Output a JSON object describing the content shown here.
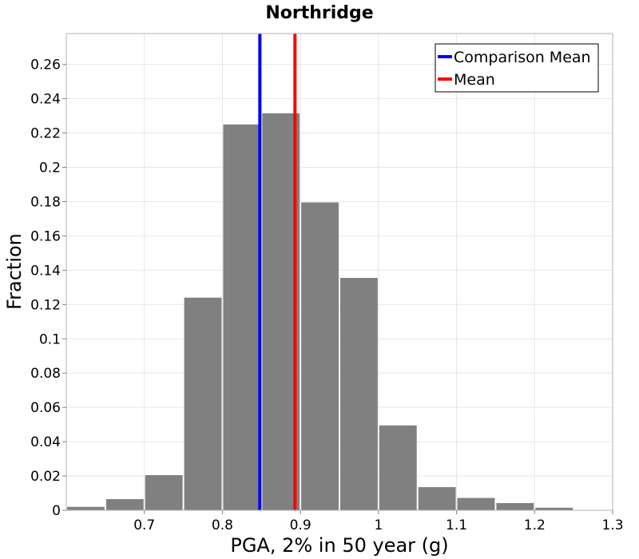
{
  "chart_data": {
    "type": "bar",
    "title": "Northridge",
    "xlabel": "PGA, 2% in 50 year (g)",
    "ylabel": "Fraction",
    "xlim": [
      0.6,
      1.3
    ],
    "ylim": [
      0,
      0.278
    ],
    "xticks": [
      0.7,
      0.8,
      0.9,
      1.0,
      1.1,
      1.2,
      1.3
    ],
    "xtick_labels": [
      "0.7",
      "0.8",
      "0.9",
      "1",
      "1.1",
      "1.2",
      "1.3"
    ],
    "yticks": [
      0,
      0.02,
      0.04,
      0.06,
      0.08,
      0.1,
      0.12,
      0.14,
      0.16,
      0.18,
      0.2,
      0.22,
      0.24,
      0.26
    ],
    "ytick_labels": [
      "0",
      "0.02",
      "0.04",
      "0.06",
      "0.08",
      "0.1",
      "0.12",
      "0.14",
      "0.16",
      "0.18",
      "0.2",
      "0.22",
      "0.24",
      "0.26"
    ],
    "bin_width": 0.05,
    "bins": [
      {
        "x": 0.625,
        "value": 0.002
      },
      {
        "x": 0.675,
        "value": 0.0065
      },
      {
        "x": 0.725,
        "value": 0.0205
      },
      {
        "x": 0.775,
        "value": 0.124
      },
      {
        "x": 0.825,
        "value": 0.225
      },
      {
        "x": 0.875,
        "value": 0.2315
      },
      {
        "x": 0.925,
        "value": 0.1795
      },
      {
        "x": 0.975,
        "value": 0.1355
      },
      {
        "x": 1.025,
        "value": 0.0495
      },
      {
        "x": 1.075,
        "value": 0.0135
      },
      {
        "x": 1.125,
        "value": 0.0072
      },
      {
        "x": 1.175,
        "value": 0.0042
      },
      {
        "x": 1.225,
        "value": 0.0015
      },
      {
        "x": 1.275,
        "value": 0.0002
      }
    ],
    "vertical_lines": [
      {
        "name": "Comparison Mean",
        "x": 0.848,
        "color": "#0000ff"
      },
      {
        "name": "Mean",
        "x": 0.893,
        "color": "#ff0000"
      }
    ],
    "legend": {
      "position": "top-right",
      "entries": [
        {
          "label": "Comparison Mean",
          "color": "#0000ff"
        },
        {
          "label": "Mean",
          "color": "#ff0000"
        }
      ]
    },
    "bar_color": "#808080",
    "grid": true
  }
}
